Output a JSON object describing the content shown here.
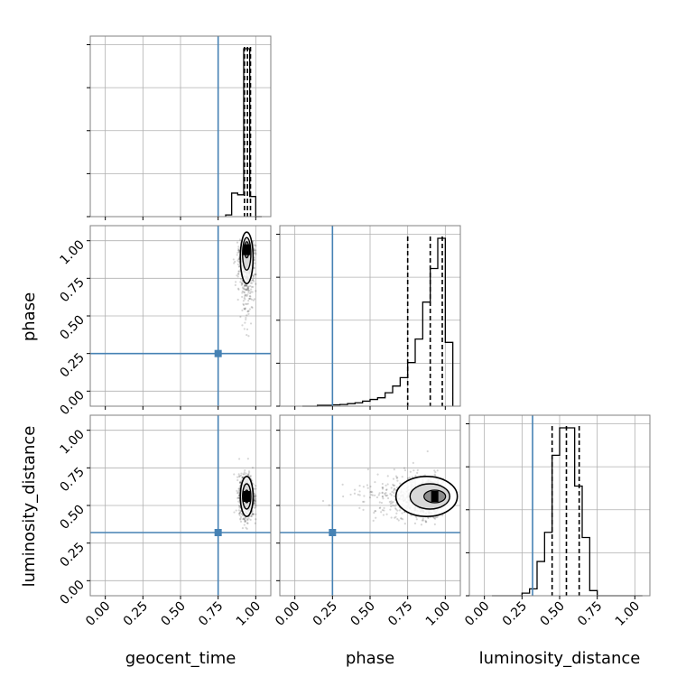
{
  "chart_data": {
    "type": "corner",
    "parameters": [
      "geocent_time",
      "phase",
      "luminosity_distance"
    ],
    "axis_range": [
      -0.1,
      1.1
    ],
    "tick_labels": [
      "0.00",
      "0.25",
      "0.50",
      "0.75",
      "1.00"
    ],
    "tick_values": [
      0.0,
      0.25,
      0.5,
      0.75,
      1.0
    ],
    "grid": true,
    "truths": {
      "geocent_time": 0.75,
      "phase": 0.25,
      "luminosity_distance": 0.32
    },
    "truth_color": "#4682b4",
    "histograms": {
      "geocent_time": {
        "bins": [
          0.8,
          0.84,
          0.88,
          0.92,
          0.96,
          1.0,
          1.04
        ],
        "heights": [
          0.01,
          0.14,
          0.13,
          1.0,
          0.12,
          0.0
        ],
        "quantiles": [
          0.925,
          0.945,
          0.965
        ]
      },
      "phase": {
        "bins": [
          0.05,
          0.1,
          0.15,
          0.2,
          0.25,
          0.3,
          0.35,
          0.4,
          0.45,
          0.5,
          0.55,
          0.6,
          0.65,
          0.7,
          0.75,
          0.8,
          0.85,
          0.9,
          0.95,
          1.0,
          1.05
        ],
        "heights": [
          0.0,
          0.0,
          0.005,
          0.005,
          0.008,
          0.01,
          0.015,
          0.02,
          0.03,
          0.04,
          0.05,
          0.08,
          0.12,
          0.17,
          0.26,
          0.4,
          0.62,
          0.82,
          1.0,
          0.38
        ],
        "quantiles": [
          0.75,
          0.9,
          0.98
        ]
      },
      "luminosity_distance": {
        "bins": [
          0.05,
          0.1,
          0.15,
          0.2,
          0.25,
          0.3,
          0.35,
          0.4,
          0.45,
          0.5,
          0.55,
          0.6,
          0.65,
          0.7,
          0.75,
          0.8,
          0.85,
          0.9,
          0.95,
          1.0,
          1.05
        ],
        "heights": [
          0.0,
          0.0,
          0.0,
          0.0,
          0.015,
          0.04,
          0.2,
          0.37,
          0.82,
          0.98,
          0.98,
          0.64,
          0.34,
          0.03,
          0.0,
          0.0,
          0.0,
          0.0,
          0.0,
          0.0
        ],
        "quantiles": [
          0.45,
          0.545,
          0.63
        ]
      }
    },
    "scatter_2d": [
      {
        "x_param": "geocent_time",
        "y_param": "phase",
        "center": [
          0.94,
          0.94
        ],
        "spread": [
          0.025,
          0.09
        ]
      },
      {
        "x_param": "geocent_time",
        "y_param": "luminosity_distance",
        "center": [
          0.94,
          0.56
        ],
        "spread": [
          0.025,
          0.07
        ]
      },
      {
        "x_param": "phase",
        "y_param": "luminosity_distance",
        "center": [
          0.93,
          0.56
        ],
        "spread": [
          0.12,
          0.07
        ]
      }
    ]
  }
}
